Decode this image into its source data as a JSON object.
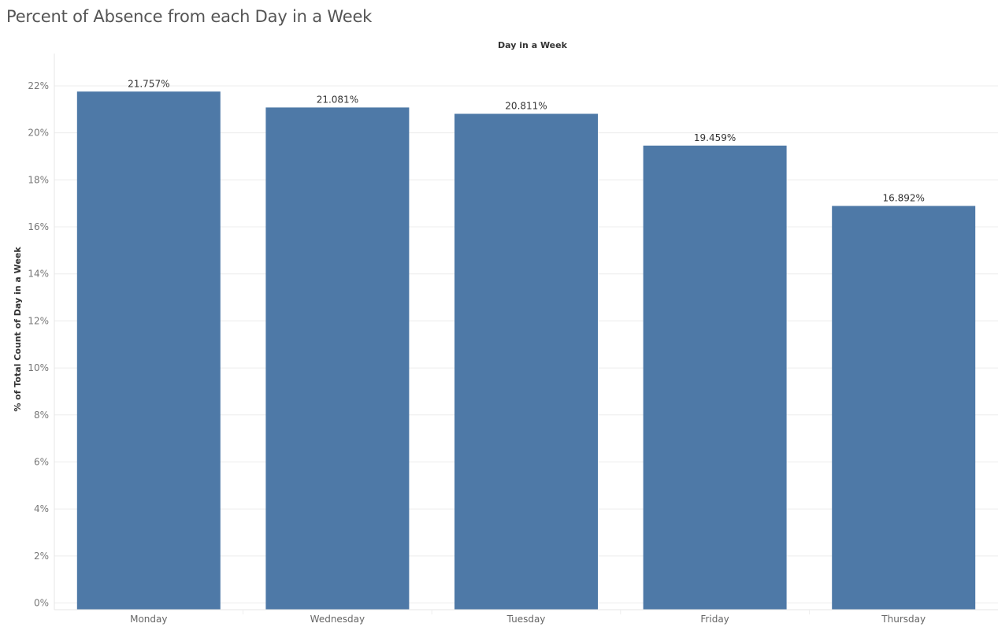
{
  "chart_data": {
    "type": "bar",
    "title": "Percent of Absence from each Day in a Week",
    "xlabel": "Day in a Week",
    "ylabel": "% of Total Count of Day in a Week",
    "categories": [
      "Monday",
      "Wednesday",
      "Tuesday",
      "Friday",
      "Thursday"
    ],
    "values": [
      21.757,
      21.081,
      20.811,
      19.459,
      16.892
    ],
    "value_labels": [
      "21.757%",
      "21.081%",
      "20.811%",
      "19.459%",
      "16.892%"
    ],
    "y_ticks": [
      0,
      2,
      4,
      6,
      8,
      10,
      12,
      14,
      16,
      18,
      20,
      22
    ],
    "y_tick_labels": [
      "0%",
      "2%",
      "4%",
      "6%",
      "8%",
      "10%",
      "12%",
      "14%",
      "16%",
      "18%",
      "20%",
      "22%"
    ],
    "ylim": [
      0,
      22.3
    ],
    "grid": true,
    "bar_color": "#4e79a7"
  }
}
